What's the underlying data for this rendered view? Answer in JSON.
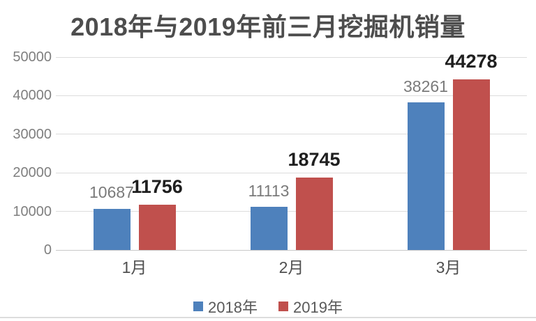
{
  "chart_data": {
    "type": "bar",
    "title": "2018年与2019年前三月挖掘机销量",
    "categories": [
      "1月",
      "2月",
      "3月"
    ],
    "series": [
      {
        "name": "2018年",
        "color": "#4E81BC",
        "values": [
          10687,
          11113,
          38261
        ],
        "label_style": "muted"
      },
      {
        "name": "2019年",
        "color": "#C0504D",
        "values": [
          11756,
          18745,
          44278
        ],
        "label_style": "emphasis"
      }
    ],
    "xlabel": "",
    "ylabel": "",
    "ylim": [
      0,
      50000
    ],
    "yticks": [
      0,
      10000,
      20000,
      30000,
      40000,
      50000
    ],
    "grid": true,
    "legend_position": "bottom"
  },
  "theme": {
    "background": "#FFFFFF",
    "title_color": "#4D4D4D",
    "axis_tick_color": "#7F7F7F",
    "category_label_color": "#4F4F4F",
    "muted_value_label_color": "#7A7A7A",
    "emphasis_value_label_color": "#1F1F1F",
    "gridline_color": "#DCDCDC",
    "baseline_color": "#C9C9C9",
    "legend_text_color": "#595959",
    "bottom_divider_color": "#DDDDDD"
  }
}
